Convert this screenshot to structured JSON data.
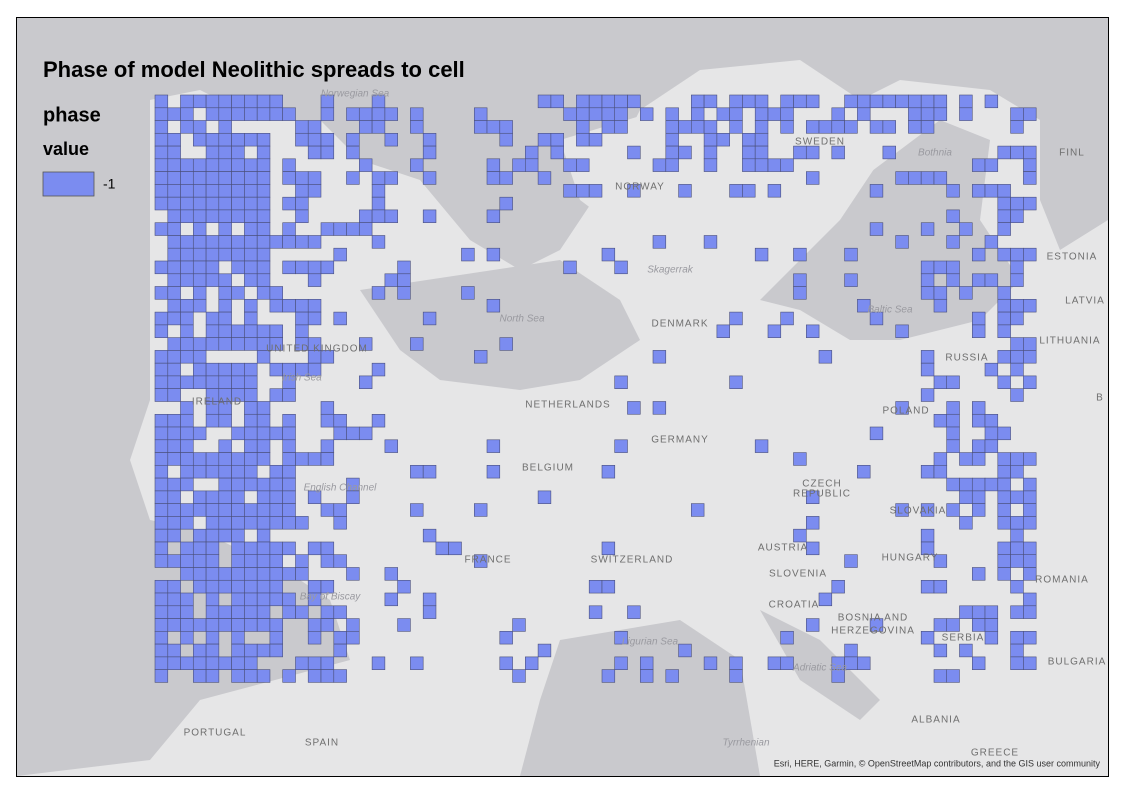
{
  "map": {
    "title": "Phase of model Neolithic spreads to cell",
    "legend": {
      "field": "phase",
      "heading": "value",
      "label": "-1",
      "color": "#7b8cf0"
    },
    "places": [
      "NORWAY",
      "SWEDEN",
      "FINL",
      "ESTONIA",
      "LATVIA",
      "LITHUANIA",
      "RUSSIA",
      "DENMARK",
      "UNITED KINGDOM",
      "IRELAND",
      "NETHERLANDS",
      "BELGIUM",
      "GERMANY",
      "POLAND",
      "CZECH",
      "REPUBLIC",
      "SLOVAKIA",
      "AUSTRIA",
      "HUNGARY",
      "SLOVENIA",
      "CROATIA",
      "BOSNIA AND",
      "HERZEGOVINA",
      "SERBIA",
      "ROMANIA",
      "BULGARIA",
      "ALBANIA",
      "SWITZERLAND",
      "FRANCE",
      "PORTUGAL",
      "SPAIN",
      "GREECE",
      "B"
    ],
    "seas": [
      "Norwegian Sea",
      "North Sea",
      "Skagerrak",
      "Baltic Sea",
      "Irish Sea",
      "English Channel",
      "Bay of Biscay",
      "Ligurian Sea",
      "Adriatic Sea",
      "Tyrrhenian",
      "Bothnia"
    ],
    "attribution": "Esri, HERE, Garmin, © OpenStreetMap contributors, and the GIS user community"
  }
}
